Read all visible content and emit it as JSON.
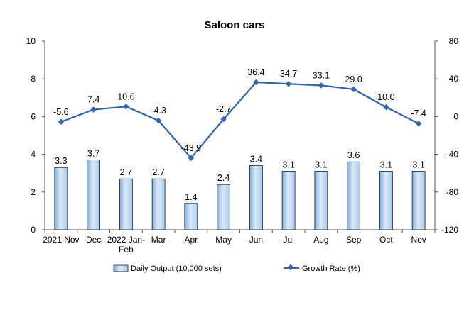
{
  "chart_data": {
    "type": "bar+line",
    "title": "Saloon cars",
    "categories": [
      [
        "2021 Nov"
      ],
      [
        "Dec"
      ],
      [
        "2022 Jan-",
        "Feb"
      ],
      [
        "Mar"
      ],
      [
        "Apr"
      ],
      [
        "May"
      ],
      [
        "Jun"
      ],
      [
        "Jul"
      ],
      [
        "Aug"
      ],
      [
        "Sep"
      ],
      [
        "Oct"
      ],
      [
        "Nov"
      ]
    ],
    "series": [
      {
        "name": "Daily Output (10,000 sets)",
        "type": "bar",
        "axis": "left",
        "values": [
          3.3,
          3.7,
          2.7,
          2.7,
          1.4,
          2.4,
          3.4,
          3.1,
          3.1,
          3.6,
          3.1,
          3.1
        ],
        "labels": [
          "3.3",
          "3.7",
          "2.7",
          "2.7",
          "1.4",
          "2.4",
          "3.4",
          "3.1",
          "3.1",
          "3.6",
          "3.1",
          "3.1"
        ]
      },
      {
        "name": "Growth Rate (%)",
        "type": "line",
        "axis": "right",
        "values": [
          -5.6,
          7.4,
          10.6,
          -4.3,
          -43.9,
          -2.7,
          36.4,
          34.7,
          33.1,
          29.0,
          10.0,
          -7.4
        ],
        "labels": [
          "-5.6",
          "7.4",
          "10.6",
          "-4.3",
          "-43.9",
          "-2.7",
          "36.4",
          "34.7",
          "33.1",
          "29.0",
          "10.0",
          "-7.4"
        ]
      }
    ],
    "y_left": {
      "range": [
        0,
        10
      ],
      "ticks": [
        "0",
        "2",
        "4",
        "6",
        "8",
        "10"
      ]
    },
    "y_right": {
      "range": [
        -120,
        80
      ],
      "ticks": [
        "-120",
        "-80",
        "-40",
        "0",
        "40",
        "80"
      ]
    },
    "legend_position": "bottom",
    "grid": false,
    "colors": {
      "bar_fill_light": "#dbe9f8",
      "bar_fill_dark": "#7fb0e0",
      "bar_stroke": "#1f1f1f",
      "line": "#2e64b0"
    }
  }
}
